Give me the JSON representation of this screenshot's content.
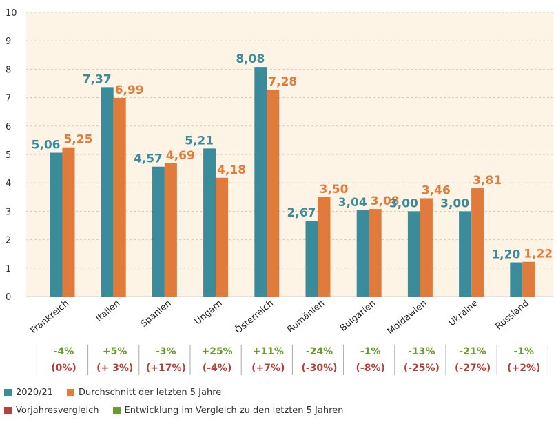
{
  "chart_data": {
    "type": "bar",
    "categories": [
      "Frankreich",
      "Italien",
      "Spanien",
      "Ungarn",
      "Österreich",
      "Rumänien",
      "Bulgarien",
      "Moldawien",
      "Ukraine",
      "Russland"
    ],
    "series": [
      {
        "name": "2020/21",
        "values": [
          5.06,
          7.37,
          4.57,
          5.21,
          8.08,
          2.67,
          3.04,
          3.0,
          3.0,
          1.2
        ],
        "labels": [
          "5,06",
          "7,37",
          "4,57",
          "5,21",
          "8,08",
          "2,67",
          "3,04",
          "3,00",
          "3,00",
          "1,20"
        ],
        "color": "#3a8c9a"
      },
      {
        "name": "Durchschnitt der letzten 5 Jahre",
        "values": [
          5.25,
          6.99,
          4.69,
          4.18,
          7.28,
          3.5,
          3.08,
          3.46,
          3.81,
          1.22
        ],
        "labels": [
          "5,25",
          "6,99",
          "4,69",
          "4,18",
          "7,28",
          "3,50",
          "3,08",
          "3,46",
          "3,81",
          "1,22"
        ],
        "color": "#e07b3c"
      }
    ],
    "ylim": [
      0,
      10
    ],
    "yticks": [
      "0",
      "1",
      "2",
      "3",
      "4",
      "5",
      "6",
      "7",
      "8",
      "9",
      "10"
    ],
    "grid": true,
    "comparison": {
      "entwicklung": [
        "-4%",
        "+5%",
        "-3%",
        "+25%",
        "+11%",
        "-24%",
        "-1%",
        "-13%",
        "-21%",
        "-1%"
      ],
      "vorjahr": [
        "(0%)",
        "(+ 3%)",
        "(+17%)",
        "(-4%)",
        "(+7%)",
        "(-30%)",
        "(-8%)",
        "(-25%)",
        "(-27%)",
        "(+2%)"
      ]
    }
  },
  "colors": {
    "teal": "#3a8c9a",
    "orange": "#e07b3c",
    "green": "#6a9a2c",
    "red": "#b5413a",
    "plot_bg": "#fdf4e6",
    "grid": "#cccccc"
  },
  "legend": {
    "items": [
      {
        "label": "2020/21",
        "color": "#3a8c9a"
      },
      {
        "label": "Durchschnitt der letzten 5 Jahre",
        "color": "#e07b3c"
      },
      {
        "label": "Vorjahresvergleich",
        "color": "#b5413a"
      },
      {
        "label": "Entwicklung im Vergleich zu den letzten 5 Jahren",
        "color": "#6a9a2c"
      }
    ]
  }
}
